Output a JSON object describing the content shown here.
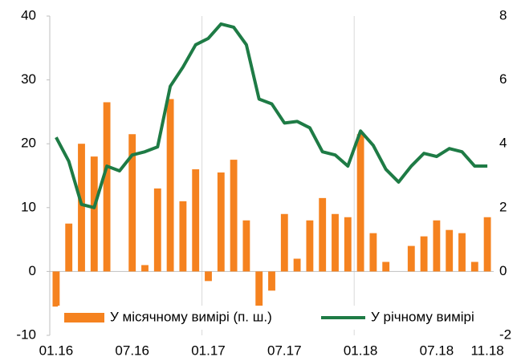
{
  "chart_data": {
    "type": "bar_line",
    "categories": [
      "01.16",
      null,
      null,
      null,
      null,
      null,
      "07.16",
      null,
      null,
      null,
      null,
      null,
      "01.17",
      null,
      null,
      null,
      null,
      null,
      "07.17",
      null,
      null,
      null,
      null,
      null,
      "01.18",
      null,
      null,
      null,
      null,
      null,
      "07.18",
      null,
      null,
      null,
      "11.18"
    ],
    "series": [
      {
        "name": "У місячному вимірі (п. ш.)",
        "type": "bar",
        "axis": "y",
        "color": "#f5821f",
        "values": [
          -5.5,
          7.5,
          20,
          18,
          26.5,
          0,
          21.5,
          1,
          13,
          27,
          11,
          16,
          -1.5,
          15.5,
          17.5,
          8,
          -6.5,
          -3,
          9,
          2,
          8,
          11.5,
          9,
          8.5,
          21.5,
          6,
          1.5,
          0,
          4,
          5.5,
          8,
          6.5,
          6,
          1.5,
          8.5
        ]
      },
      {
        "name": "У річному вимірі",
        "type": "line",
        "axis": "y2",
        "color": "#1e7b45",
        "values": [
          4.2,
          3.45,
          2.1,
          2.0,
          3.3,
          3.15,
          3.65,
          3.75,
          3.9,
          5.8,
          6.4,
          7.1,
          7.3,
          7.75,
          7.65,
          7.1,
          5.4,
          5.25,
          4.65,
          4.7,
          4.5,
          3.75,
          3.65,
          3.3,
          4.4,
          3.95,
          3.2,
          2.8,
          3.3,
          3.7,
          3.6,
          3.85,
          3.75,
          3.3,
          3.3
        ]
      }
    ],
    "ylim": [
      -10,
      40
    ],
    "yticks": [
      -10,
      0,
      10,
      20,
      30,
      40
    ],
    "y2lim": [
      -2,
      8
    ],
    "y2ticks": [
      -2,
      0,
      2,
      4,
      6,
      8
    ],
    "legend": "bottom"
  }
}
